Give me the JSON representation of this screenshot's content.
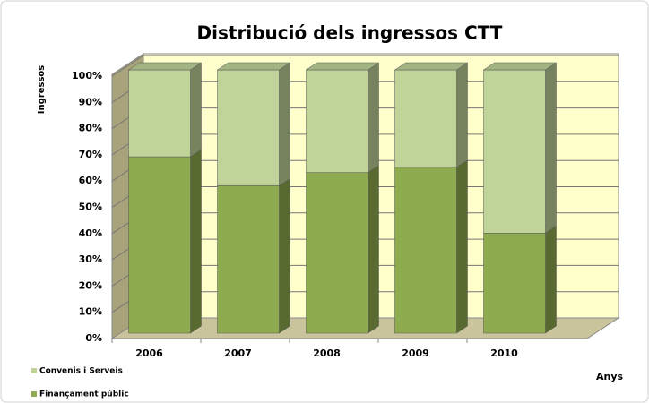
{
  "chart_data": {
    "type": "bar3d_stacked",
    "title": "Distribució dels ingressos CTT",
    "x_label": "Anys",
    "y_label": "Ingressos",
    "categories": [
      "2006",
      "2007",
      "2008",
      "2009",
      "2010"
    ],
    "series": [
      {
        "name": "Convenis i Serveis",
        "color": "#c0d49a",
        "values": [
          33,
          44,
          39,
          37,
          62
        ]
      },
      {
        "name": "Finançament públic",
        "color": "#8fab4f",
        "values": [
          67,
          56,
          61,
          63,
          38
        ]
      }
    ],
    "ylim": [
      0,
      100
    ],
    "yticks": [
      {
        "value": 0,
        "label": "0%"
      },
      {
        "value": 10,
        "label": "10%"
      },
      {
        "value": 20,
        "label": "20%"
      },
      {
        "value": 30,
        "label": "30%"
      },
      {
        "value": 40,
        "label": "40%"
      },
      {
        "value": 50,
        "label": "50%"
      },
      {
        "value": 60,
        "label": "60%"
      },
      {
        "value": 70,
        "label": "70%"
      },
      {
        "value": 80,
        "label": "80%"
      },
      {
        "value": 90,
        "label": "90%"
      },
      {
        "value": 100,
        "label": "100%"
      }
    ],
    "grid": true
  }
}
